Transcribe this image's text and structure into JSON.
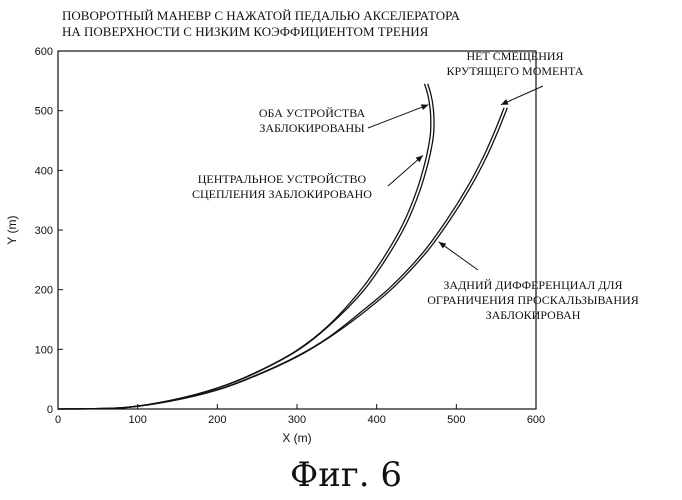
{
  "chart_data": {
    "type": "line",
    "title_lines": [
      "ПОВОРОТНЫЙ МАНЕВР С НАЖАТОЙ ПЕДАЛЬЮ АКСЕЛЕРАТОРА",
      "НА ПОВЕРХНОСТИ С НИЗКИМ КОЭФФИЦИЕНТОМ ТРЕНИЯ"
    ],
    "xlabel": "X (m)",
    "ylabel": "Y (m)",
    "xlim": [
      0,
      600
    ],
    "ylim": [
      0,
      600
    ],
    "xticks": [
      0,
      100,
      200,
      300,
      400,
      500,
      600
    ],
    "yticks": [
      0,
      100,
      200,
      300,
      400,
      500,
      600
    ],
    "grid": false,
    "series": [
      {
        "x": [
          0,
          80,
          140,
          200,
          250,
          300,
          340,
          380,
          410,
          435,
          452,
          463,
          469,
          470,
          469,
          466,
          462
        ],
        "y": [
          0,
          2,
          14,
          35,
          62,
          98,
          140,
          196,
          252,
          310,
          365,
          415,
          455,
          480,
          505,
          528,
          545
        ]
      },
      {
        "x": [
          0,
          80,
          140,
          200,
          250,
          300,
          340,
          380,
          410,
          435,
          452,
          463,
          469,
          470,
          469,
          466,
          462
        ],
        "y": [
          0,
          2,
          14,
          35,
          62,
          98,
          140,
          196,
          252,
          310,
          365,
          415,
          455,
          480,
          505,
          528,
          545
        ]
      },
      {
        "x": [
          0,
          80,
          140,
          200,
          250,
          300,
          340,
          380,
          420,
          460,
          490,
          515,
          535,
          550,
          562
        ],
        "y": [
          0,
          2,
          13,
          32,
          57,
          88,
          120,
          160,
          205,
          262,
          317,
          370,
          420,
          465,
          505
        ]
      },
      {
        "x": [
          0,
          80,
          140,
          200,
          250,
          300,
          340,
          380,
          420,
          460,
          490,
          515,
          535,
          550,
          562
        ],
        "y": [
          0,
          2,
          13,
          32,
          57,
          88,
          120,
          160,
          205,
          262,
          317,
          370,
          420,
          465,
          505
        ]
      }
    ],
    "annotations": [
      {
        "lines": [
          "ОБА УСТРОЙСТВА",
          "ЗАБЛОКИРОВАНЫ"
        ],
        "target": [
          465,
          510
        ]
      },
      {
        "lines": [
          "ЦЕНТРАЛЬНОЕ УСТРОЙСТВО",
          "СЦЕПЛЕНИЯ ЗАБЛОКИРОВАНО"
        ],
        "target": [
          458,
          425
        ]
      },
      {
        "lines": [
          "НЕТ СМЕЩЕНИЯ",
          "КРУТЯЩЕГО МОМЕНТА"
        ],
        "target": [
          556,
          510
        ]
      },
      {
        "lines": [
          "ЗАДНИЙ ДИФФЕРЕНЦИАЛ ДЛЯ",
          "ОГРАНИЧЕНИЯ ПРОСКАЛЬЗЫВАНИЯ",
          "ЗАБЛОКИРОВАН"
        ],
        "target": [
          478,
          280
        ]
      }
    ]
  },
  "caption": "Фиг. 6"
}
